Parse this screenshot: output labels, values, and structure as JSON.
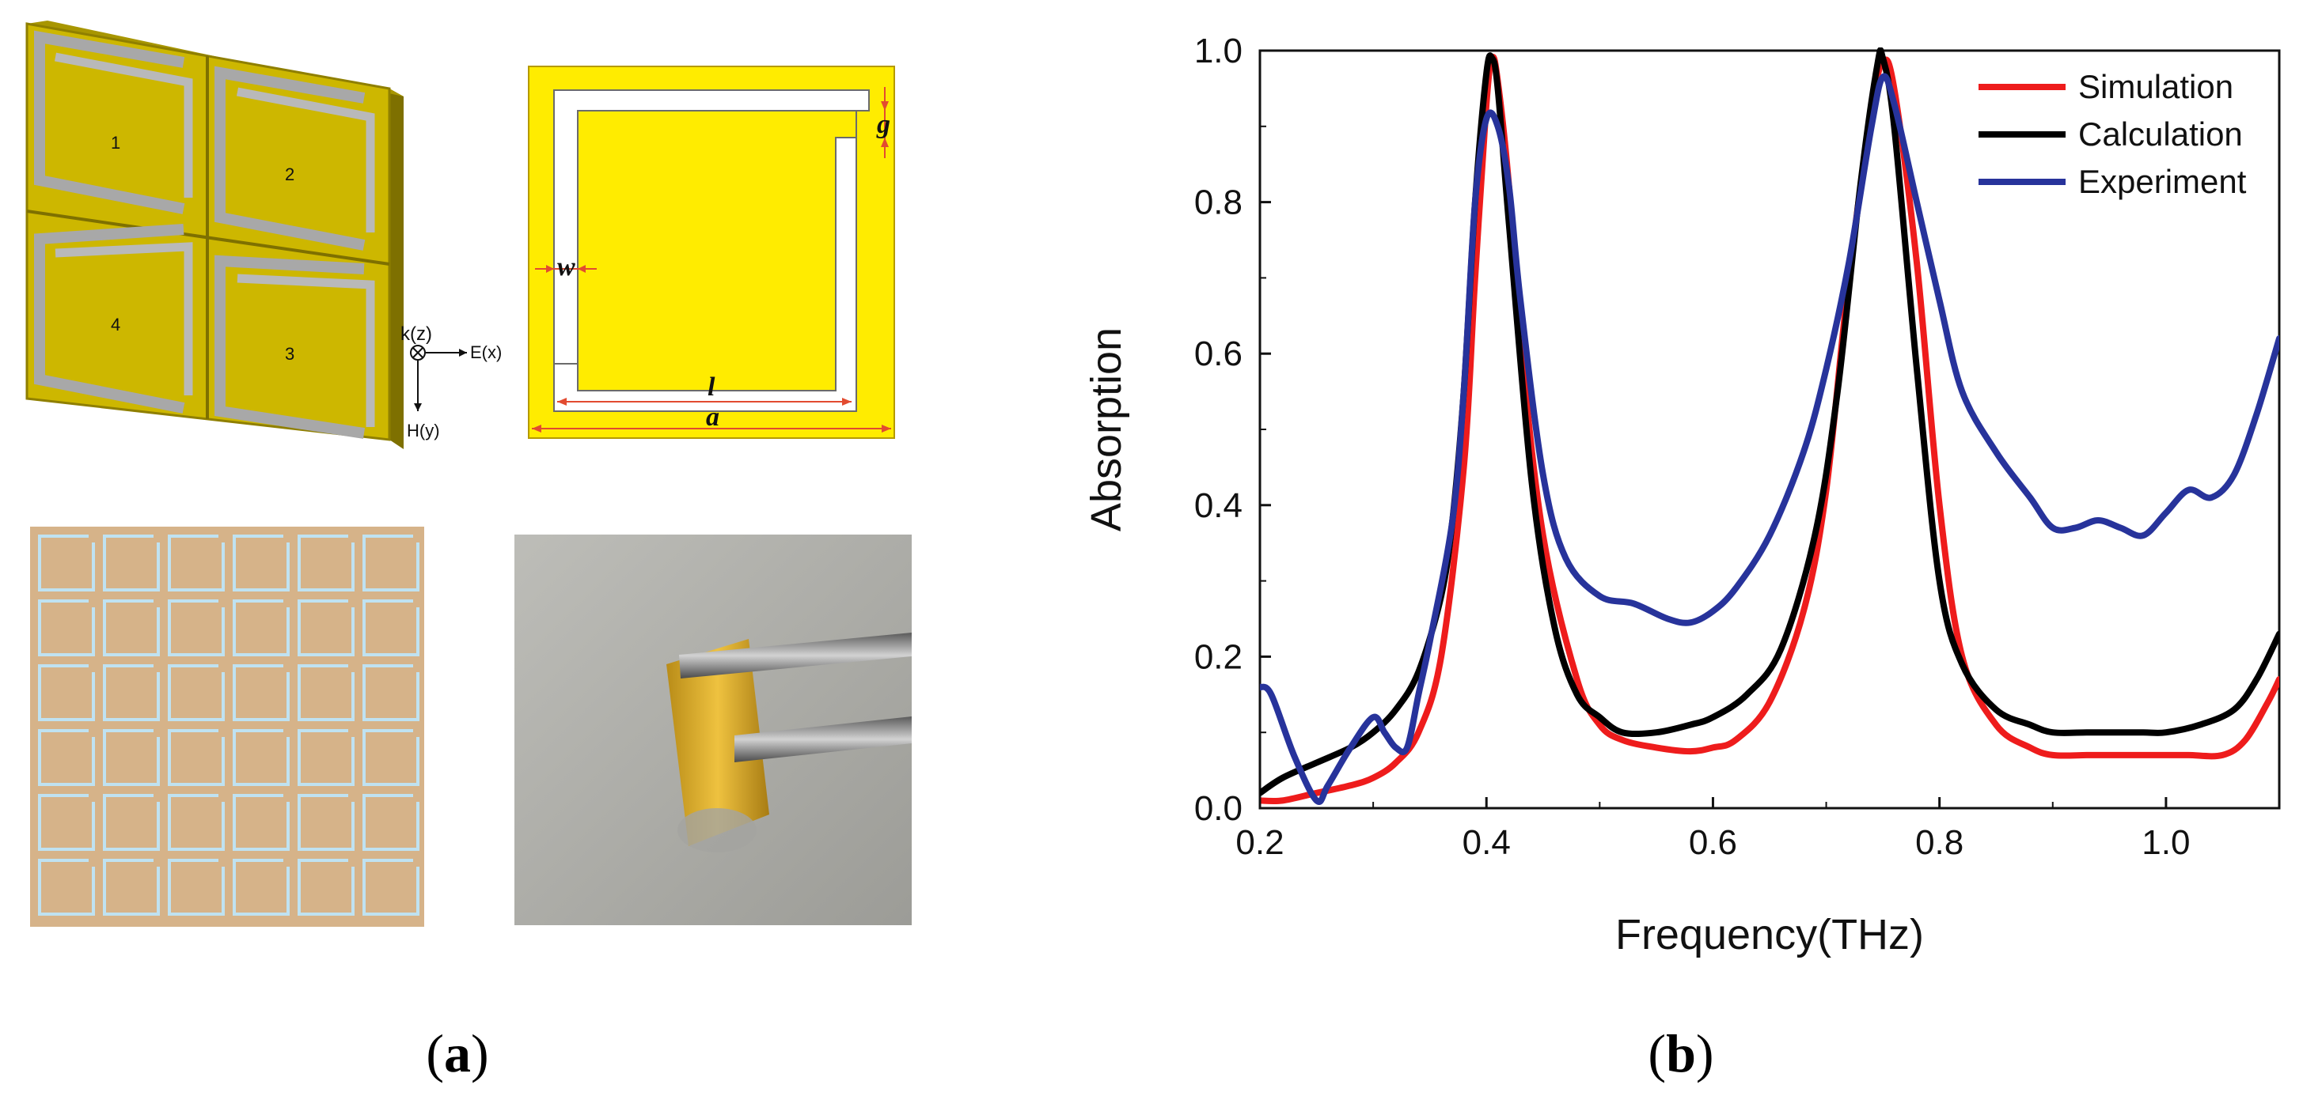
{
  "panel_a": {
    "label": "a",
    "unit_cell": {
      "cell_numbers": [
        "1",
        "2",
        "4",
        "3"
      ],
      "axes": {
        "k": "k(z)",
        "e": "E(x)",
        "h": "H(y)"
      }
    },
    "srr_params": {
      "g": "g",
      "w": "w",
      "l": "l",
      "a": "a"
    },
    "photo_description_color": "#a9a9a3"
  },
  "panel_b": {
    "label": "b"
  },
  "colors": {
    "gold_face": "#c9b300",
    "gold_light": "#ffec00",
    "gold_edge": "#8f7f00",
    "slot": "#b7b7b7",
    "sim": "#ee1c1c",
    "calc": "#000000",
    "exp": "#27339b",
    "array_fill": "#d6b389",
    "array_slot": "#bfe2f1"
  },
  "chart_data": {
    "type": "line",
    "title": "",
    "xlabel": "Frequency(THz)",
    "ylabel": "Absorption",
    "xlim": [
      0.2,
      1.1
    ],
    "ylim": [
      0.0,
      1.0
    ],
    "x_ticks": [
      "0.2",
      "0.4",
      "0.6",
      "0.8",
      "1.0"
    ],
    "x_tick_values": [
      0.2,
      0.4,
      0.6,
      0.8,
      1.0
    ],
    "y_ticks": [
      "0.0",
      "0.2",
      "0.4",
      "0.6",
      "0.8",
      "1.0"
    ],
    "y_tick_values": [
      0.0,
      0.2,
      0.4,
      0.6,
      0.8,
      1.0
    ],
    "legend_position": "top-right",
    "series": [
      {
        "name": "Simulation",
        "color": "#ee1c1c",
        "x": [
          0.2,
          0.22,
          0.25,
          0.28,
          0.3,
          0.32,
          0.34,
          0.36,
          0.38,
          0.39,
          0.4,
          0.405,
          0.41,
          0.42,
          0.43,
          0.45,
          0.48,
          0.5,
          0.52,
          0.55,
          0.58,
          0.6,
          0.62,
          0.65,
          0.68,
          0.7,
          0.72,
          0.74,
          0.75,
          0.76,
          0.78,
          0.8,
          0.82,
          0.85,
          0.88,
          0.9,
          0.93,
          0.95,
          0.97,
          1.0,
          1.02,
          1.05,
          1.07,
          1.09,
          1.1
        ],
        "y": [
          0.01,
          0.01,
          0.02,
          0.03,
          0.04,
          0.06,
          0.1,
          0.2,
          0.45,
          0.7,
          0.93,
          0.99,
          0.96,
          0.82,
          0.62,
          0.36,
          0.17,
          0.11,
          0.09,
          0.08,
          0.075,
          0.08,
          0.09,
          0.14,
          0.26,
          0.42,
          0.7,
          0.92,
          0.985,
          0.95,
          0.72,
          0.4,
          0.2,
          0.11,
          0.08,
          0.07,
          0.07,
          0.07,
          0.07,
          0.07,
          0.07,
          0.07,
          0.09,
          0.14,
          0.17
        ]
      },
      {
        "name": "Calculation",
        "color": "#000000",
        "x": [
          0.2,
          0.22,
          0.25,
          0.28,
          0.3,
          0.32,
          0.34,
          0.36,
          0.37,
          0.38,
          0.39,
          0.4,
          0.405,
          0.41,
          0.42,
          0.44,
          0.46,
          0.48,
          0.5,
          0.52,
          0.55,
          0.58,
          0.6,
          0.63,
          0.66,
          0.69,
          0.71,
          0.73,
          0.745,
          0.75,
          0.76,
          0.78,
          0.8,
          0.82,
          0.85,
          0.88,
          0.9,
          0.93,
          0.95,
          0.98,
          1.0,
          1.03,
          1.06,
          1.08,
          1.1
        ],
        "y": [
          0.02,
          0.04,
          0.06,
          0.08,
          0.1,
          0.13,
          0.18,
          0.28,
          0.38,
          0.55,
          0.8,
          0.97,
          0.99,
          0.95,
          0.77,
          0.43,
          0.24,
          0.15,
          0.12,
          0.1,
          0.1,
          0.11,
          0.12,
          0.15,
          0.21,
          0.36,
          0.55,
          0.82,
          0.98,
          0.99,
          0.9,
          0.58,
          0.3,
          0.19,
          0.13,
          0.11,
          0.1,
          0.1,
          0.1,
          0.1,
          0.1,
          0.11,
          0.13,
          0.17,
          0.23
        ]
      },
      {
        "name": "Experiment",
        "color": "#27339b",
        "x": [
          0.2,
          0.21,
          0.23,
          0.25,
          0.26,
          0.28,
          0.3,
          0.31,
          0.32,
          0.33,
          0.34,
          0.35,
          0.37,
          0.38,
          0.39,
          0.4,
          0.41,
          0.42,
          0.43,
          0.45,
          0.47,
          0.5,
          0.53,
          0.56,
          0.58,
          0.6,
          0.62,
          0.65,
          0.68,
          0.7,
          0.72,
          0.74,
          0.75,
          0.76,
          0.78,
          0.8,
          0.82,
          0.85,
          0.88,
          0.9,
          0.92,
          0.94,
          0.96,
          0.98,
          1.0,
          1.02,
          1.04,
          1.06,
          1.08,
          1.1
        ],
        "y": [
          0.16,
          0.15,
          0.07,
          0.01,
          0.03,
          0.08,
          0.12,
          0.1,
          0.08,
          0.08,
          0.15,
          0.22,
          0.38,
          0.55,
          0.8,
          0.91,
          0.9,
          0.82,
          0.67,
          0.44,
          0.33,
          0.28,
          0.27,
          0.25,
          0.245,
          0.26,
          0.29,
          0.36,
          0.47,
          0.58,
          0.72,
          0.9,
          0.965,
          0.93,
          0.8,
          0.67,
          0.55,
          0.47,
          0.41,
          0.37,
          0.37,
          0.38,
          0.37,
          0.36,
          0.39,
          0.42,
          0.41,
          0.44,
          0.52,
          0.62
        ]
      }
    ]
  }
}
